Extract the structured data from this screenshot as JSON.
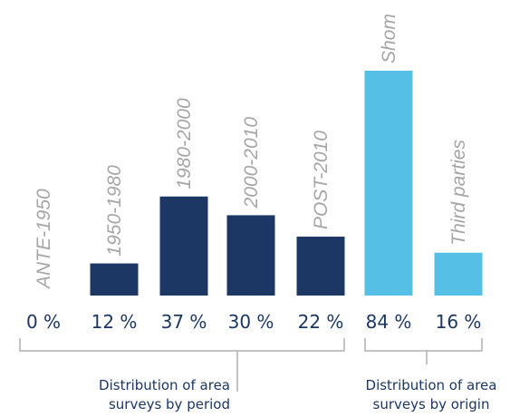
{
  "chart_data": {
    "type": "bar",
    "groups": [
      {
        "name": "Distribution of area surveys by period",
        "label_lines": [
          "Distribution of area",
          "surveys by period"
        ],
        "color": "#1c3764",
        "categories": [
          "ANTE-1950",
          "1950-1980",
          "1980-2000",
          "2000-2010",
          "POST-2010"
        ],
        "values": [
          0,
          12,
          37,
          30,
          22
        ],
        "value_labels": [
          "0 %",
          "12 %",
          "37 %",
          "30 %",
          "22 %"
        ]
      },
      {
        "name": "Distribution of area surveys by origin",
        "label_lines": [
          "Distribution of area",
          "surveys by origin"
        ],
        "color": "#55bfe6",
        "categories": [
          "Shom",
          "Third parties"
        ],
        "values": [
          84,
          16
        ],
        "value_labels": [
          "84 %",
          "16 %"
        ]
      }
    ],
    "unit": "%",
    "ylim": [
      0,
      84
    ],
    "grid": false
  }
}
